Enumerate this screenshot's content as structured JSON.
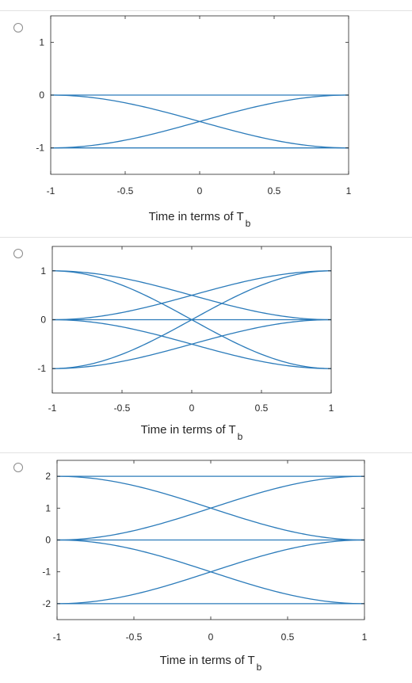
{
  "chart_data": [
    {
      "type": "line",
      "option_index": 0,
      "xlabel": "Time in terms of T",
      "xlabel_subscript": "b",
      "xlim": [
        -1,
        1
      ],
      "ylim": [
        -1.5,
        1.5
      ],
      "xticks": [
        -1,
        -0.5,
        0,
        0.5,
        1
      ],
      "xtick_labels": [
        "-1",
        "-0.5",
        "0",
        "0.5",
        "1"
      ],
      "yticks": [
        1,
        0,
        -1
      ],
      "ytick_labels": [
        "1",
        "0",
        "-1"
      ],
      "grid": false,
      "color": "#2b7bba",
      "levels": [
        0,
        -1
      ],
      "traces": [
        {
          "name": "0 to 0",
          "from": 0,
          "to": 0
        },
        {
          "name": "-1 to -1",
          "from": -1,
          "to": -1
        },
        {
          "name": "0 to -1",
          "from": 0,
          "to": -1
        },
        {
          "name": "-1 to 0",
          "from": -1,
          "to": 0
        }
      ]
    },
    {
      "type": "line",
      "option_index": 1,
      "xlabel": "Time in terms of T",
      "xlabel_subscript": "b",
      "xlim": [
        -1,
        1
      ],
      "ylim": [
        -1.5,
        1.5
      ],
      "xticks": [
        -1,
        -0.5,
        0,
        0.5,
        1
      ],
      "xtick_labels": [
        "-1",
        "-0.5",
        "0",
        "0.5",
        "1"
      ],
      "yticks": [
        1,
        0,
        -1
      ],
      "ytick_labels": [
        "1",
        "0",
        "-1"
      ],
      "grid": false,
      "color": "#2b7bba",
      "levels": [
        1,
        0,
        -1
      ],
      "traces": [
        {
          "name": "1 to 0",
          "from": 1,
          "to": 0
        },
        {
          "name": "1 to -1",
          "from": 1,
          "to": -1
        },
        {
          "name": "0 to 1",
          "from": 0,
          "to": 1
        },
        {
          "name": "0 to 0",
          "from": 0,
          "to": 0
        },
        {
          "name": "0 to -1",
          "from": 0,
          "to": -1
        },
        {
          "name": "-1 to 1",
          "from": -1,
          "to": 1
        },
        {
          "name": "-1 to 0",
          "from": -1,
          "to": 0
        }
      ]
    },
    {
      "type": "line",
      "option_index": 2,
      "xlabel": "Time in terms of T",
      "xlabel_subscript": "b",
      "xlim": [
        -1,
        1
      ],
      "ylim": [
        -2.5,
        2.5
      ],
      "xticks": [
        -1,
        -0.5,
        0,
        0.5,
        1
      ],
      "xtick_labels": [
        "-1",
        "-0.5",
        "0",
        "0.5",
        "1"
      ],
      "yticks": [
        2,
        1,
        0,
        -1,
        -2
      ],
      "ytick_labels": [
        "2",
        "1",
        "0",
        "-1",
        "-2"
      ],
      "grid": false,
      "color": "#2b7bba",
      "levels": [
        2,
        0,
        -2
      ],
      "traces": [
        {
          "name": "2 to 2",
          "from": 2,
          "to": 2
        },
        {
          "name": "2 to 0",
          "from": 2,
          "to": 0
        },
        {
          "name": "0 to 2",
          "from": 0,
          "to": 2
        },
        {
          "name": "0 to 0",
          "from": 0,
          "to": 0
        },
        {
          "name": "0 to -2",
          "from": 0,
          "to": -2
        },
        {
          "name": "-2 to 0",
          "from": -2,
          "to": 0
        },
        {
          "name": "-2 to -2",
          "from": -2,
          "to": -2
        }
      ]
    }
  ]
}
